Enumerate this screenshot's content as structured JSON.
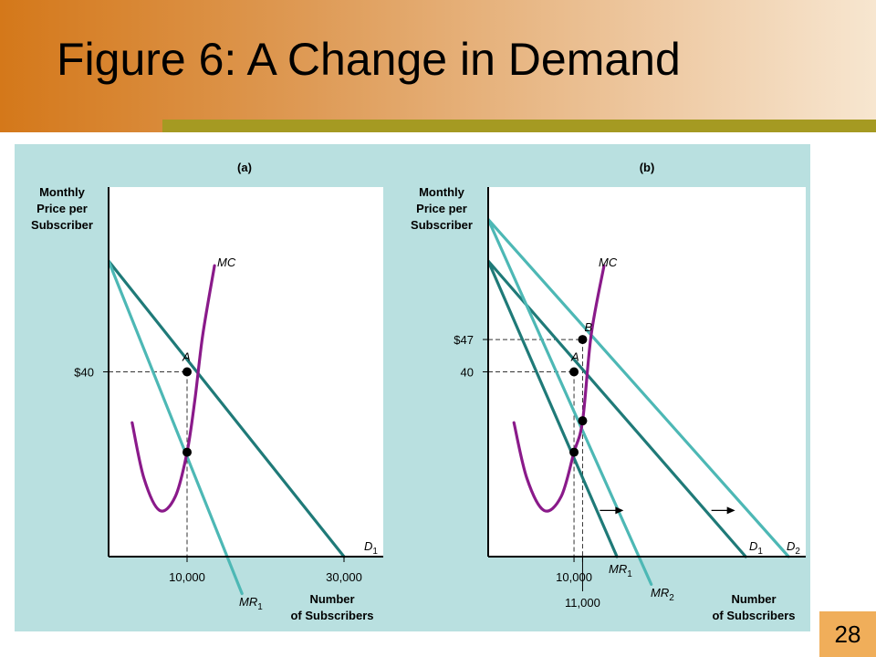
{
  "slide": {
    "title": "Figure 6:  A Change in Demand",
    "page_number": "28"
  },
  "colors": {
    "demand_dark": "#1f7a78",
    "demand_light": "#4db8b5",
    "mc": "#8a1a8a",
    "panel_bg": "#b9e0e0",
    "plot_bg": "#ffffff"
  },
  "chart_data": [
    {
      "type": "line",
      "panel_label": "(a)",
      "ylabel": [
        "Monthly",
        "Price per",
        "Subscriber"
      ],
      "xlabel": [
        "Number",
        "of Subscribers"
      ],
      "x_ticks": [
        {
          "value": 10000,
          "label": "10,000"
        },
        {
          "value": 30000,
          "label": "30,000"
        }
      ],
      "y_ticks": [
        {
          "value": 40,
          "label": "$40"
        }
      ],
      "xlim": [
        0,
        35000
      ],
      "ylim": [
        0,
        80
      ],
      "series": [
        {
          "name": "D",
          "sub": "1",
          "style": "dark",
          "points": [
            [
              0,
              64
            ],
            [
              30000,
              0
            ]
          ]
        },
        {
          "name": "MR",
          "sub": "1",
          "style": "light",
          "points": [
            [
              0,
              64
            ],
            [
              17000,
              -8
            ]
          ]
        },
        {
          "name": "MC",
          "sub": "",
          "style": "mc",
          "points": [
            [
              3000,
              29
            ],
            [
              4500,
              17
            ],
            [
              6500,
              10
            ],
            [
              8500,
              13
            ],
            [
              10000,
              22.6
            ],
            [
              11000,
              34
            ],
            [
              12000,
              48
            ],
            [
              13500,
              63
            ]
          ]
        }
      ],
      "points": [
        {
          "label": "A",
          "x": 10000,
          "y": 40,
          "dashed": true
        },
        {
          "label": "",
          "x": 10000,
          "y": 22.6,
          "dashed": false
        }
      ],
      "arrows": []
    },
    {
      "type": "line",
      "panel_label": "(b)",
      "ylabel": [
        "Monthly",
        "Price per",
        "Subscriber"
      ],
      "xlabel": [
        "Number",
        "of Subscribers"
      ],
      "x_ticks": [
        {
          "value": 10000,
          "label": "10,000"
        },
        {
          "value": 11000,
          "label": "11,000"
        }
      ],
      "y_ticks": [
        {
          "value": 47,
          "label": "$47"
        },
        {
          "value": 40,
          "label": "40"
        }
      ],
      "xlim": [
        0,
        37000
      ],
      "ylim": [
        0,
        80
      ],
      "series": [
        {
          "name": "D",
          "sub": "1",
          "style": "dark",
          "points": [
            [
              0,
              64
            ],
            [
              30000,
              0
            ]
          ]
        },
        {
          "name": "MR",
          "sub": "1",
          "style": "dark",
          "points": [
            [
              0,
              64
            ],
            [
              15000,
              0
            ]
          ]
        },
        {
          "name": "D",
          "sub": "2",
          "style": "light",
          "points": [
            [
              0,
              73
            ],
            [
              35000,
              0
            ]
          ]
        },
        {
          "name": "MR",
          "sub": "2",
          "style": "light",
          "points": [
            [
              0,
              73
            ],
            [
              19000,
              -6
            ]
          ]
        },
        {
          "name": "MC",
          "sub": "",
          "style": "mc",
          "points": [
            [
              3000,
              29
            ],
            [
              4500,
              17
            ],
            [
              6500,
              10
            ],
            [
              8500,
              13
            ],
            [
              10000,
              22.6
            ],
            [
              11000,
              29.4
            ],
            [
              12000,
              48
            ],
            [
              13500,
              63
            ]
          ]
        }
      ],
      "points": [
        {
          "label": "B",
          "x": 11000,
          "y": 47,
          "dashed": true
        },
        {
          "label": "A",
          "x": 10000,
          "y": 40,
          "dashed": true
        },
        {
          "label": "",
          "x": 11000,
          "y": 29.4,
          "dashed": false
        },
        {
          "label": "",
          "x": 10000,
          "y": 22.6,
          "dashed": false
        }
      ],
      "arrows": [
        {
          "x": 14500,
          "y": 10
        },
        {
          "x": 27500,
          "y": 10
        }
      ]
    }
  ]
}
